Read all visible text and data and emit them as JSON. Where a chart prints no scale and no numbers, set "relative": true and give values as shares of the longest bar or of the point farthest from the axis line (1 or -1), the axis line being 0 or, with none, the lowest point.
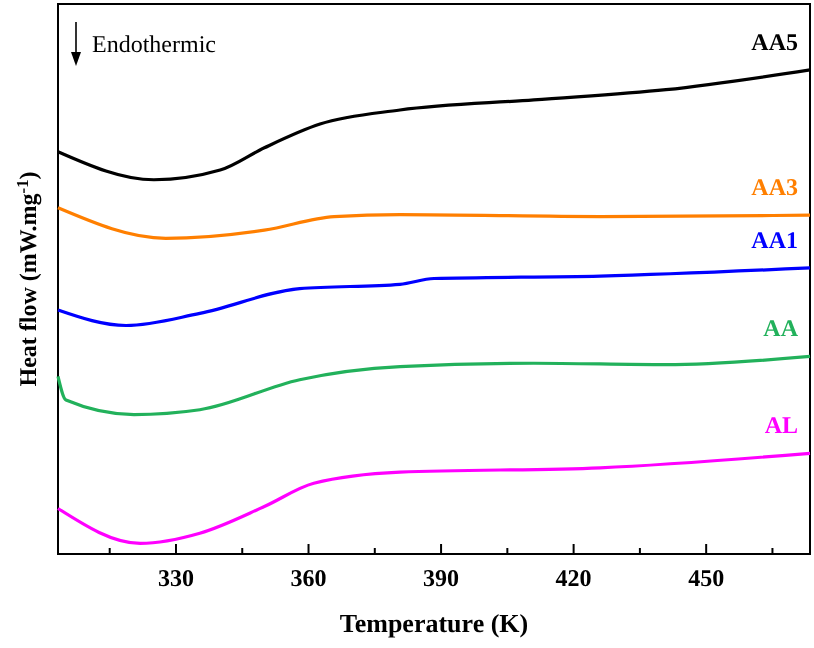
{
  "chart_data": {
    "type": "line",
    "relative": true,
    "xlabel": "Temperature (K)",
    "ylabel": "Heat flow (mW.mg$^{-1}$)",
    "annotations": [
      "Endothermic"
    ],
    "xlim": [
      303.3,
      473.5
    ],
    "xticks": [
      {
        "value": 315,
        "label": null
      },
      330,
      {
        "value": 345,
        "label": null
      },
      360,
      {
        "value": 375,
        "label": null
      },
      390,
      {
        "value": 405,
        "label": null
      },
      420,
      {
        "value": 435,
        "label": null
      },
      450,
      {
        "value": 465,
        "label": null
      }
    ],
    "series": [
      {
        "name": "AA5",
        "color": "#000000",
        "x": [
          303.3,
          325,
          340,
          350,
          362.6,
          380.7,
          411,
          440.9,
          473.5
        ],
        "values": [
          0.831,
          0.773,
          0.793,
          0.839,
          0.888,
          0.917,
          0.938,
          0.959,
          1
        ]
      },
      {
        "name": "AA3",
        "color": "#ff7f00",
        "x": [
          303.3,
          327.7,
          350,
          365.8,
          380.7,
          426,
          473.5
        ],
        "values": [
          0.715,
          0.652,
          0.669,
          0.697,
          0.701,
          0.697,
          0.7
        ]
      },
      {
        "name": "AA1",
        "color": "#0000ff",
        "x": [
          303.3,
          318.7,
          335.4,
          358,
          380.7,
          388.4,
          426,
          473.5
        ],
        "values": [
          0.504,
          0.472,
          0.497,
          0.548,
          0.557,
          0.569,
          0.574,
          0.591
        ]
      },
      {
        "name": "AA",
        "color": "#22b15b",
        "x": [
          303.3,
          305.1,
          320.5,
          335.4,
          358,
          380.7,
          411,
          440.9,
          473.5
        ],
        "values": [
          0.367,
          0.318,
          0.288,
          0.298,
          0.36,
          0.387,
          0.394,
          0.391,
          0.408
        ]
      },
      {
        "name": "AL",
        "color": "#ff00ff",
        "x": [
          303.3,
          321.9,
          335.4,
          350,
          361.2,
          380.7,
          426,
          473.5
        ],
        "values": [
          0.094,
          0.022,
          0.043,
          0.098,
          0.146,
          0.169,
          0.178,
          0.208
        ]
      }
    ]
  }
}
